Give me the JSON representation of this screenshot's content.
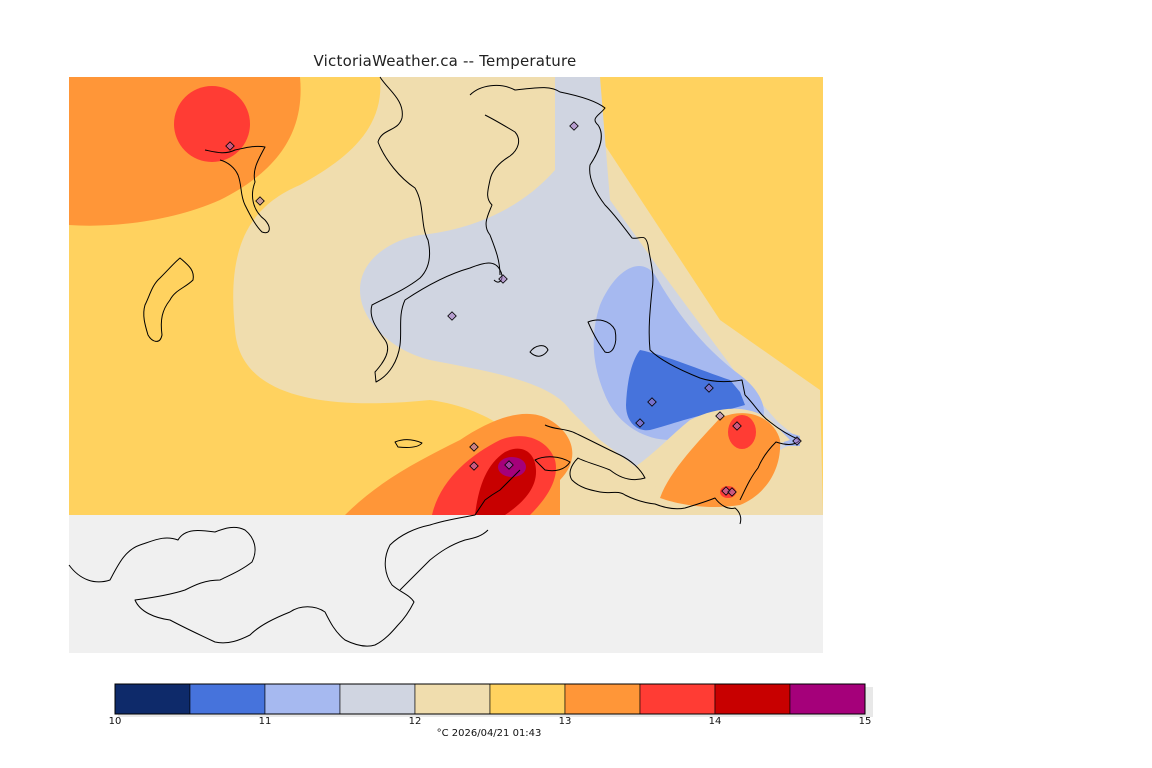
{
  "header": {
    "title": "VictoriaWeather.ca -- Temperature"
  },
  "map": {
    "water_color": "#f0f0f0",
    "coast_color": "#000000",
    "station_marker_color": "#a070c0"
  },
  "colorbar": {
    "min": 10,
    "max": 15,
    "tick_labels": [
      "10",
      "11",
      "12",
      "13",
      "14",
      "15"
    ],
    "colors": [
      "#0e2a6a",
      "#4673dc",
      "#a6b9f0",
      "#d0d5e1",
      "#f0ddae",
      "#ffd25f",
      "#ff9638",
      "#ff3c34",
      "#c80000",
      "#a5007a"
    ],
    "units_label": "°C",
    "timestamp": "2026/04/21 01:43"
  }
}
